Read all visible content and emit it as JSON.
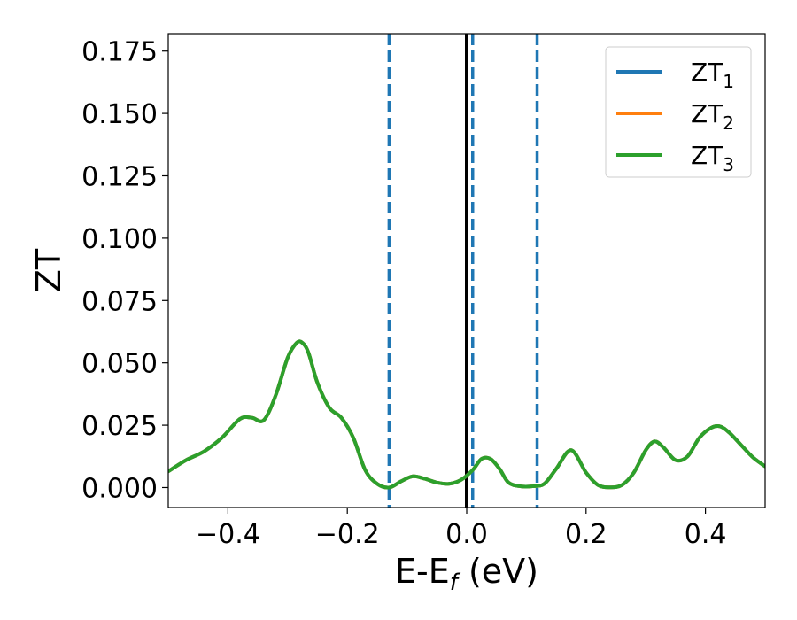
{
  "chart_data": {
    "type": "line",
    "title": "",
    "xlabel": "E-E",
    "xlabel_sub": "f",
    "xlabel_suffix": " (eV)",
    "ylabel": "ZT",
    "xlim": [
      -0.5,
      0.5
    ],
    "ylim": [
      -0.008,
      0.182
    ],
    "x_ticks": [
      -0.4,
      -0.2,
      0.0,
      0.2,
      0.4
    ],
    "x_tick_labels": [
      "−0.4",
      "−0.2",
      "0.0",
      "0.2",
      "0.4"
    ],
    "y_ticks": [
      0.0,
      0.025,
      0.05,
      0.075,
      0.1,
      0.125,
      0.15,
      0.175
    ],
    "y_tick_labels": [
      "0.000",
      "0.025",
      "0.050",
      "0.075",
      "0.100",
      "0.125",
      "0.150",
      "0.175"
    ],
    "grid": false,
    "legend_position": "top-right",
    "series": [
      {
        "name": "ZT",
        "name_sub": "1",
        "color": "#1f77b4",
        "x": [
          -0.5,
          -0.47,
          -0.44,
          -0.41,
          -0.38,
          -0.36,
          -0.34,
          -0.32,
          -0.3,
          -0.285,
          -0.275,
          -0.265,
          -0.25,
          -0.23,
          -0.21,
          -0.19,
          -0.17,
          -0.15,
          -0.13,
          -0.11,
          -0.09,
          -0.07,
          -0.05,
          -0.03,
          -0.01,
          0.01,
          0.025,
          0.04,
          0.055,
          0.07,
          0.09,
          0.11,
          0.13,
          0.15,
          0.175,
          0.2,
          0.22,
          0.24,
          0.26,
          0.28,
          0.3,
          0.315,
          0.33,
          0.35,
          0.37,
          0.39,
          0.41,
          0.425,
          0.44,
          0.46,
          0.48,
          0.5
        ],
        "y": [
          0.0065,
          0.011,
          0.0145,
          0.02,
          0.0275,
          0.028,
          0.027,
          0.037,
          0.052,
          0.058,
          0.058,
          0.054,
          0.042,
          0.032,
          0.028,
          0.02,
          0.007,
          0.0015,
          0.0,
          0.0025,
          0.0045,
          0.0035,
          0.002,
          0.0015,
          0.003,
          0.007,
          0.0115,
          0.0115,
          0.0075,
          0.002,
          0.0005,
          0.0005,
          0.0015,
          0.0075,
          0.015,
          0.006,
          0.001,
          0.0001,
          0.001,
          0.006,
          0.015,
          0.0185,
          0.016,
          0.011,
          0.0125,
          0.02,
          0.024,
          0.0245,
          0.022,
          0.017,
          0.012,
          0.0085
        ]
      },
      {
        "name": "ZT",
        "name_sub": "2",
        "color": "#ff7f0e",
        "x": [
          -0.5,
          -0.47,
          -0.44,
          -0.41,
          -0.38,
          -0.36,
          -0.34,
          -0.32,
          -0.3,
          -0.285,
          -0.275,
          -0.265,
          -0.25,
          -0.23,
          -0.21,
          -0.19,
          -0.17,
          -0.15,
          -0.13,
          -0.11,
          -0.09,
          -0.07,
          -0.05,
          -0.03,
          -0.01,
          0.01,
          0.025,
          0.04,
          0.055,
          0.07,
          0.09,
          0.11,
          0.13,
          0.15,
          0.175,
          0.2,
          0.22,
          0.24,
          0.26,
          0.28,
          0.3,
          0.315,
          0.33,
          0.35,
          0.37,
          0.39,
          0.41,
          0.425,
          0.44,
          0.46,
          0.48,
          0.5
        ],
        "y": [
          0.0065,
          0.011,
          0.0145,
          0.02,
          0.0275,
          0.028,
          0.027,
          0.037,
          0.052,
          0.058,
          0.058,
          0.054,
          0.042,
          0.032,
          0.028,
          0.02,
          0.007,
          0.0015,
          0.0,
          0.0025,
          0.0045,
          0.0035,
          0.002,
          0.0015,
          0.003,
          0.007,
          0.0115,
          0.0115,
          0.0075,
          0.002,
          0.0005,
          0.0005,
          0.0015,
          0.0075,
          0.015,
          0.006,
          0.001,
          0.0001,
          0.001,
          0.006,
          0.015,
          0.0185,
          0.016,
          0.011,
          0.0125,
          0.02,
          0.024,
          0.0245,
          0.022,
          0.017,
          0.012,
          0.0085
        ]
      },
      {
        "name": "ZT",
        "name_sub": "3",
        "color": "#2ca02c",
        "x": [
          -0.5,
          -0.47,
          -0.44,
          -0.41,
          -0.38,
          -0.36,
          -0.34,
          -0.32,
          -0.3,
          -0.285,
          -0.275,
          -0.265,
          -0.25,
          -0.23,
          -0.21,
          -0.19,
          -0.17,
          -0.15,
          -0.13,
          -0.11,
          -0.09,
          -0.07,
          -0.05,
          -0.03,
          -0.01,
          0.01,
          0.025,
          0.04,
          0.055,
          0.07,
          0.09,
          0.11,
          0.13,
          0.15,
          0.175,
          0.2,
          0.22,
          0.24,
          0.26,
          0.28,
          0.3,
          0.315,
          0.33,
          0.35,
          0.37,
          0.39,
          0.41,
          0.425,
          0.44,
          0.46,
          0.48,
          0.5
        ],
        "y": [
          0.0065,
          0.011,
          0.0145,
          0.02,
          0.0275,
          0.028,
          0.027,
          0.037,
          0.052,
          0.058,
          0.058,
          0.054,
          0.042,
          0.032,
          0.028,
          0.02,
          0.007,
          0.0015,
          0.0,
          0.0025,
          0.0045,
          0.0035,
          0.002,
          0.0015,
          0.003,
          0.007,
          0.0115,
          0.0115,
          0.0075,
          0.002,
          0.0005,
          0.0005,
          0.0015,
          0.0075,
          0.015,
          0.006,
          0.001,
          0.0001,
          0.001,
          0.006,
          0.015,
          0.0185,
          0.016,
          0.011,
          0.0125,
          0.02,
          0.024,
          0.0245,
          0.022,
          0.017,
          0.012,
          0.0085
        ]
      }
    ],
    "vertical_lines": [
      {
        "x": 0.0,
        "style": "solid",
        "color": "#000000"
      },
      {
        "x": -0.13,
        "style": "dashed",
        "color": "#1f77b4"
      },
      {
        "x": 0.01,
        "style": "dashed",
        "color": "#1f77b4"
      },
      {
        "x": 0.118,
        "style": "dashed",
        "color": "#1f77b4"
      }
    ]
  }
}
